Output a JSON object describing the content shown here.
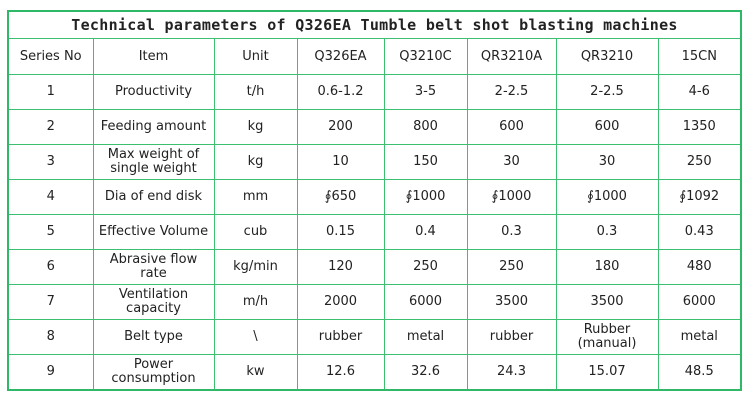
{
  "title": "Technical parameters of Q326EA Tumble belt shot blasting machines",
  "headers": [
    "Series No",
    "Item",
    "Unit",
    "Q326EA",
    "Q3210C",
    "QR3210A",
    "QR3210",
    "15CN"
  ],
  "rows": [
    [
      "1",
      "Productivity",
      "t/h",
      "0.6-1.2",
      "3-5",
      "2-2.5",
      "2-2.5",
      "4-6"
    ],
    [
      "2",
      "Feeding amount",
      "kg",
      "200",
      "800",
      "600",
      "600",
      "1350"
    ],
    [
      "3",
      "Max weight of single weight",
      "kg",
      "10",
      "150",
      "30",
      "30",
      "250"
    ],
    [
      "4",
      "Dia of end disk",
      "mm",
      "∮650",
      "∮1000",
      "∮1000",
      "∮1000",
      "∮1092"
    ],
    [
      "5",
      "Effective Volume",
      "cub",
      "0.15",
      "0.4",
      "0.3",
      "0.3",
      "0.43"
    ],
    [
      "6",
      "Abrasive flow rate",
      "kg/min",
      "120",
      "250",
      "250",
      "180",
      "480"
    ],
    [
      "7",
      "Ventilation capacity",
      "m/h",
      "2000",
      "6000",
      "3500",
      "3500",
      "6000"
    ],
    [
      "8",
      "Belt type",
      "\\",
      "rubber",
      "metal",
      "rubber",
      "Rubber (manual)",
      "metal"
    ],
    [
      "9",
      "Power consumption",
      "kw",
      "12.6",
      "32.6",
      "24.3",
      "15.07",
      "48.5"
    ]
  ],
  "colors": {
    "border": "#2fb868"
  }
}
